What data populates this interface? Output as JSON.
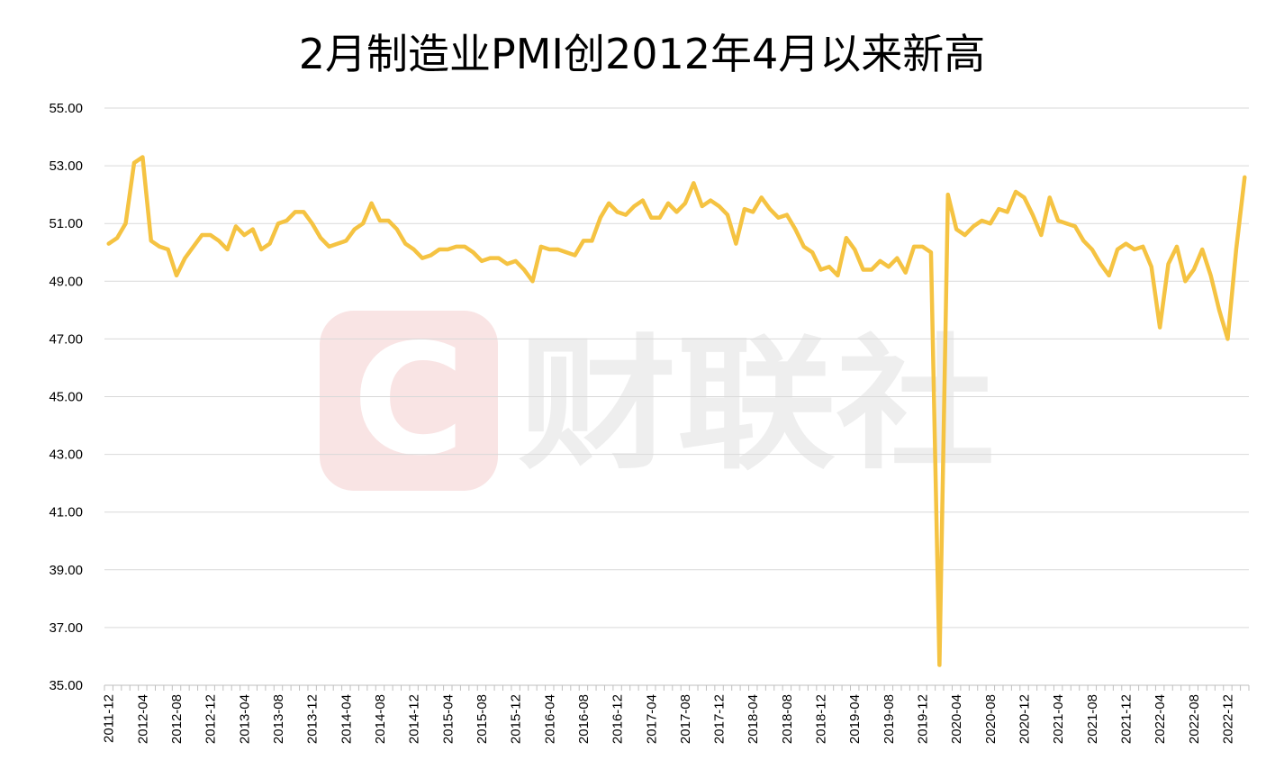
{
  "chart_data": {
    "type": "line",
    "title": "2月制造业PMI创2012年4月以来新高",
    "xlabel": "",
    "ylabel": "",
    "ylim": [
      35,
      55
    ],
    "yticks": [
      "35.00",
      "37.00",
      "39.00",
      "41.00",
      "43.00",
      "45.00",
      "47.00",
      "49.00",
      "51.00",
      "53.00",
      "55.00"
    ],
    "grid": "horizontal",
    "legend": "none",
    "line_color": "#F5C342",
    "x_tick_labels": [
      "2011-12",
      "2012-04",
      "2012-08",
      "2012-12",
      "2013-04",
      "2013-08",
      "2013-12",
      "2014-04",
      "2014-08",
      "2014-12",
      "2015-04",
      "2015-08",
      "2015-12",
      "2016-04",
      "2016-08",
      "2016-12",
      "2017-04",
      "2017-08",
      "2017-12",
      "2018-04",
      "2018-08",
      "2018-12",
      "2019-04",
      "2019-08",
      "2019-12",
      "2020-04",
      "2020-08",
      "2020-12",
      "2021-04",
      "2021-08",
      "2021-12",
      "2022-04",
      "2022-08",
      "2022-12"
    ],
    "x": [
      "2011-12",
      "2012-01",
      "2012-02",
      "2012-03",
      "2012-04",
      "2012-05",
      "2012-06",
      "2012-07",
      "2012-08",
      "2012-09",
      "2012-10",
      "2012-11",
      "2012-12",
      "2013-01",
      "2013-02",
      "2013-03",
      "2013-04",
      "2013-05",
      "2013-06",
      "2013-07",
      "2013-08",
      "2013-09",
      "2013-10",
      "2013-11",
      "2013-12",
      "2014-01",
      "2014-02",
      "2014-03",
      "2014-04",
      "2014-05",
      "2014-06",
      "2014-07",
      "2014-08",
      "2014-09",
      "2014-10",
      "2014-11",
      "2014-12",
      "2015-01",
      "2015-02",
      "2015-03",
      "2015-04",
      "2015-05",
      "2015-06",
      "2015-07",
      "2015-08",
      "2015-09",
      "2015-10",
      "2015-11",
      "2015-12",
      "2016-01",
      "2016-02",
      "2016-03",
      "2016-04",
      "2016-05",
      "2016-06",
      "2016-07",
      "2016-08",
      "2016-09",
      "2016-10",
      "2016-11",
      "2016-12",
      "2017-01",
      "2017-02",
      "2017-03",
      "2017-04",
      "2017-05",
      "2017-06",
      "2017-07",
      "2017-08",
      "2017-09",
      "2017-10",
      "2017-11",
      "2017-12",
      "2018-01",
      "2018-02",
      "2018-03",
      "2018-04",
      "2018-05",
      "2018-06",
      "2018-07",
      "2018-08",
      "2018-09",
      "2018-10",
      "2018-11",
      "2018-12",
      "2019-01",
      "2019-02",
      "2019-03",
      "2019-04",
      "2019-05",
      "2019-06",
      "2019-07",
      "2019-08",
      "2019-09",
      "2019-10",
      "2019-11",
      "2019-12",
      "2020-01",
      "2020-02",
      "2020-03",
      "2020-04",
      "2020-05",
      "2020-06",
      "2020-07",
      "2020-08",
      "2020-09",
      "2020-10",
      "2020-11",
      "2020-12",
      "2021-01",
      "2021-02",
      "2021-03",
      "2021-04",
      "2021-05",
      "2021-06",
      "2021-07",
      "2021-08",
      "2021-09",
      "2021-10",
      "2021-11",
      "2021-12",
      "2022-01",
      "2022-02",
      "2022-03",
      "2022-04",
      "2022-05",
      "2022-06",
      "2022-07",
      "2022-08",
      "2022-09",
      "2022-10",
      "2022-11",
      "2022-12",
      "2023-01",
      "2023-02"
    ],
    "series": [
      {
        "values": [
          50.3,
          50.5,
          51.0,
          53.1,
          53.3,
          50.4,
          50.2,
          50.1,
          49.2,
          49.8,
          50.2,
          50.6,
          50.6,
          50.4,
          50.1,
          50.9,
          50.6,
          50.8,
          50.1,
          50.3,
          51.0,
          51.1,
          51.4,
          51.4,
          51.0,
          50.5,
          50.2,
          50.3,
          50.4,
          50.8,
          51.0,
          51.7,
          51.1,
          51.1,
          50.8,
          50.3,
          50.1,
          49.8,
          49.9,
          50.1,
          50.1,
          50.2,
          50.2,
          50.0,
          49.7,
          49.8,
          49.8,
          49.6,
          49.7,
          49.4,
          49.0,
          50.2,
          50.1,
          50.1,
          50.0,
          49.9,
          50.4,
          50.4,
          51.2,
          51.7,
          51.4,
          51.3,
          51.6,
          51.8,
          51.2,
          51.2,
          51.7,
          51.4,
          51.7,
          52.4,
          51.6,
          51.8,
          51.6,
          51.3,
          50.3,
          51.5,
          51.4,
          51.9,
          51.5,
          51.2,
          51.3,
          50.8,
          50.2,
          50.0,
          49.4,
          49.5,
          49.2,
          50.5,
          50.1,
          49.4,
          49.4,
          49.7,
          49.5,
          49.8,
          49.3,
          50.2,
          50.2,
          50.0,
          35.7,
          52.0,
          50.8,
          50.6,
          50.9,
          51.1,
          51.0,
          51.5,
          51.4,
          52.1,
          51.9,
          51.3,
          50.6,
          51.9,
          51.1,
          51.0,
          50.9,
          50.4,
          50.1,
          49.6,
          49.2,
          50.1,
          50.3,
          50.1,
          50.2,
          49.5,
          47.4,
          49.6,
          50.2,
          49.0,
          49.4,
          50.1,
          49.2,
          48.0,
          47.0,
          50.1,
          52.6
        ]
      }
    ]
  },
  "watermark": {
    "logo_letter": "C",
    "text": "财联社",
    "logo_color": "#F9E4E4"
  }
}
